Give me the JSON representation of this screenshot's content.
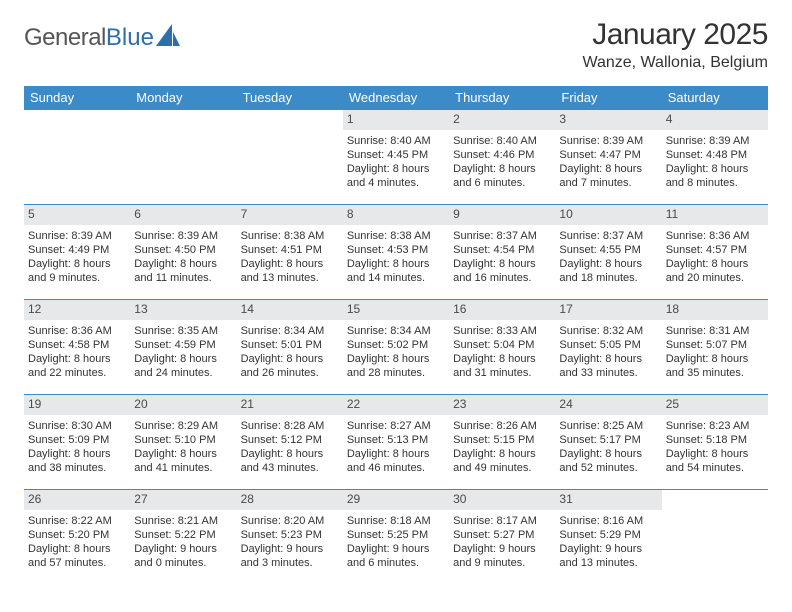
{
  "brand": {
    "word1": "General",
    "word2": "Blue"
  },
  "title": "January 2025",
  "location": "Wanze, Wallonia, Belgium",
  "colors": {
    "header_bg": "#3b8bc9",
    "header_text": "#ffffff",
    "daynum_bg": "#e7e8ea",
    "cell_border": "#3b8bc9",
    "brand_blue": "#2f6fa8"
  },
  "weekdays": [
    "Sunday",
    "Monday",
    "Tuesday",
    "Wednesday",
    "Thursday",
    "Friday",
    "Saturday"
  ],
  "weeks": [
    [
      null,
      null,
      null,
      {
        "n": "1",
        "sr": "8:40 AM",
        "ss": "4:45 PM",
        "dl": "8 hours and 4 minutes."
      },
      {
        "n": "2",
        "sr": "8:40 AM",
        "ss": "4:46 PM",
        "dl": "8 hours and 6 minutes."
      },
      {
        "n": "3",
        "sr": "8:39 AM",
        "ss": "4:47 PM",
        "dl": "8 hours and 7 minutes."
      },
      {
        "n": "4",
        "sr": "8:39 AM",
        "ss": "4:48 PM",
        "dl": "8 hours and 8 minutes."
      }
    ],
    [
      {
        "n": "5",
        "sr": "8:39 AM",
        "ss": "4:49 PM",
        "dl": "8 hours and 9 minutes."
      },
      {
        "n": "6",
        "sr": "8:39 AM",
        "ss": "4:50 PM",
        "dl": "8 hours and 11 minutes."
      },
      {
        "n": "7",
        "sr": "8:38 AM",
        "ss": "4:51 PM",
        "dl": "8 hours and 13 minutes."
      },
      {
        "n": "8",
        "sr": "8:38 AM",
        "ss": "4:53 PM",
        "dl": "8 hours and 14 minutes."
      },
      {
        "n": "9",
        "sr": "8:37 AM",
        "ss": "4:54 PM",
        "dl": "8 hours and 16 minutes."
      },
      {
        "n": "10",
        "sr": "8:37 AM",
        "ss": "4:55 PM",
        "dl": "8 hours and 18 minutes."
      },
      {
        "n": "11",
        "sr": "8:36 AM",
        "ss": "4:57 PM",
        "dl": "8 hours and 20 minutes."
      }
    ],
    [
      {
        "n": "12",
        "sr": "8:36 AM",
        "ss": "4:58 PM",
        "dl": "8 hours and 22 minutes."
      },
      {
        "n": "13",
        "sr": "8:35 AM",
        "ss": "4:59 PM",
        "dl": "8 hours and 24 minutes."
      },
      {
        "n": "14",
        "sr": "8:34 AM",
        "ss": "5:01 PM",
        "dl": "8 hours and 26 minutes."
      },
      {
        "n": "15",
        "sr": "8:34 AM",
        "ss": "5:02 PM",
        "dl": "8 hours and 28 minutes."
      },
      {
        "n": "16",
        "sr": "8:33 AM",
        "ss": "5:04 PM",
        "dl": "8 hours and 31 minutes."
      },
      {
        "n": "17",
        "sr": "8:32 AM",
        "ss": "5:05 PM",
        "dl": "8 hours and 33 minutes."
      },
      {
        "n": "18",
        "sr": "8:31 AM",
        "ss": "5:07 PM",
        "dl": "8 hours and 35 minutes."
      }
    ],
    [
      {
        "n": "19",
        "sr": "8:30 AM",
        "ss": "5:09 PM",
        "dl": "8 hours and 38 minutes."
      },
      {
        "n": "20",
        "sr": "8:29 AM",
        "ss": "5:10 PM",
        "dl": "8 hours and 41 minutes."
      },
      {
        "n": "21",
        "sr": "8:28 AM",
        "ss": "5:12 PM",
        "dl": "8 hours and 43 minutes."
      },
      {
        "n": "22",
        "sr": "8:27 AM",
        "ss": "5:13 PM",
        "dl": "8 hours and 46 minutes."
      },
      {
        "n": "23",
        "sr": "8:26 AM",
        "ss": "5:15 PM",
        "dl": "8 hours and 49 minutes."
      },
      {
        "n": "24",
        "sr": "8:25 AM",
        "ss": "5:17 PM",
        "dl": "8 hours and 52 minutes."
      },
      {
        "n": "25",
        "sr": "8:23 AM",
        "ss": "5:18 PM",
        "dl": "8 hours and 54 minutes."
      }
    ],
    [
      {
        "n": "26",
        "sr": "8:22 AM",
        "ss": "5:20 PM",
        "dl": "8 hours and 57 minutes."
      },
      {
        "n": "27",
        "sr": "8:21 AM",
        "ss": "5:22 PM",
        "dl": "9 hours and 0 minutes."
      },
      {
        "n": "28",
        "sr": "8:20 AM",
        "ss": "5:23 PM",
        "dl": "9 hours and 3 minutes."
      },
      {
        "n": "29",
        "sr": "8:18 AM",
        "ss": "5:25 PM",
        "dl": "9 hours and 6 minutes."
      },
      {
        "n": "30",
        "sr": "8:17 AM",
        "ss": "5:27 PM",
        "dl": "9 hours and 9 minutes."
      },
      {
        "n": "31",
        "sr": "8:16 AM",
        "ss": "5:29 PM",
        "dl": "9 hours and 13 minutes."
      },
      null
    ]
  ],
  "labels": {
    "sunrise": "Sunrise: ",
    "sunset": "Sunset: ",
    "daylight": "Daylight: "
  }
}
